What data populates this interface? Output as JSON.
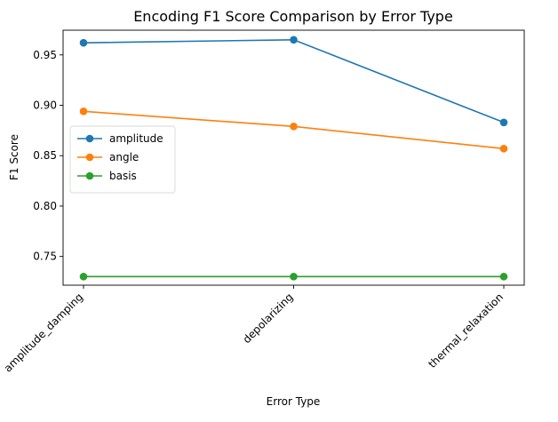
{
  "chart_data": {
    "type": "line",
    "title": "Encoding F1 Score Comparison by Error Type",
    "xlabel": "Error Type",
    "ylabel": "F1 Score",
    "categories": [
      "amplitude_damping",
      "depolarizing",
      "thermal_relaxation"
    ],
    "ylim": [
      0.7215,
      0.9745
    ],
    "yticks": [
      "0.75",
      "0.80",
      "0.85",
      "0.90",
      "0.95"
    ],
    "ytick_values": [
      0.75,
      0.8,
      0.85,
      0.9,
      0.95
    ],
    "grid": false,
    "legend_position": "center-left",
    "series": [
      {
        "name": "amplitude",
        "color": "#1f77b4",
        "values": [
          0.962,
          0.965,
          0.883
        ]
      },
      {
        "name": "angle",
        "color": "#ff7f0e",
        "values": [
          0.894,
          0.879,
          0.857
        ]
      },
      {
        "name": "basis",
        "color": "#2ca02c",
        "values": [
          0.73,
          0.73,
          0.73
        ]
      }
    ]
  }
}
